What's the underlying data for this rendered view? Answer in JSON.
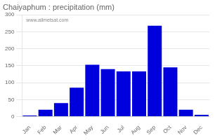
{
  "chart_data": {
    "type": "bar",
    "title": "Chaiyaphum : precipitation (mm)",
    "categories": [
      "Jan",
      "Feb",
      "Mar",
      "Apr",
      "May",
      "Jun",
      "Jul",
      "Aug",
      "Sep",
      "Oct",
      "Nov",
      "Dec"
    ],
    "values": [
      3,
      20,
      40,
      85,
      153,
      140,
      133,
      133,
      268,
      145,
      20,
      5
    ],
    "color": "#0000dd",
    "ylim": [
      0,
      300
    ],
    "yticks": [
      0,
      50,
      100,
      150,
      200,
      250,
      300
    ],
    "grid": true,
    "annotations": [
      "www.allmetsat.com"
    ]
  }
}
